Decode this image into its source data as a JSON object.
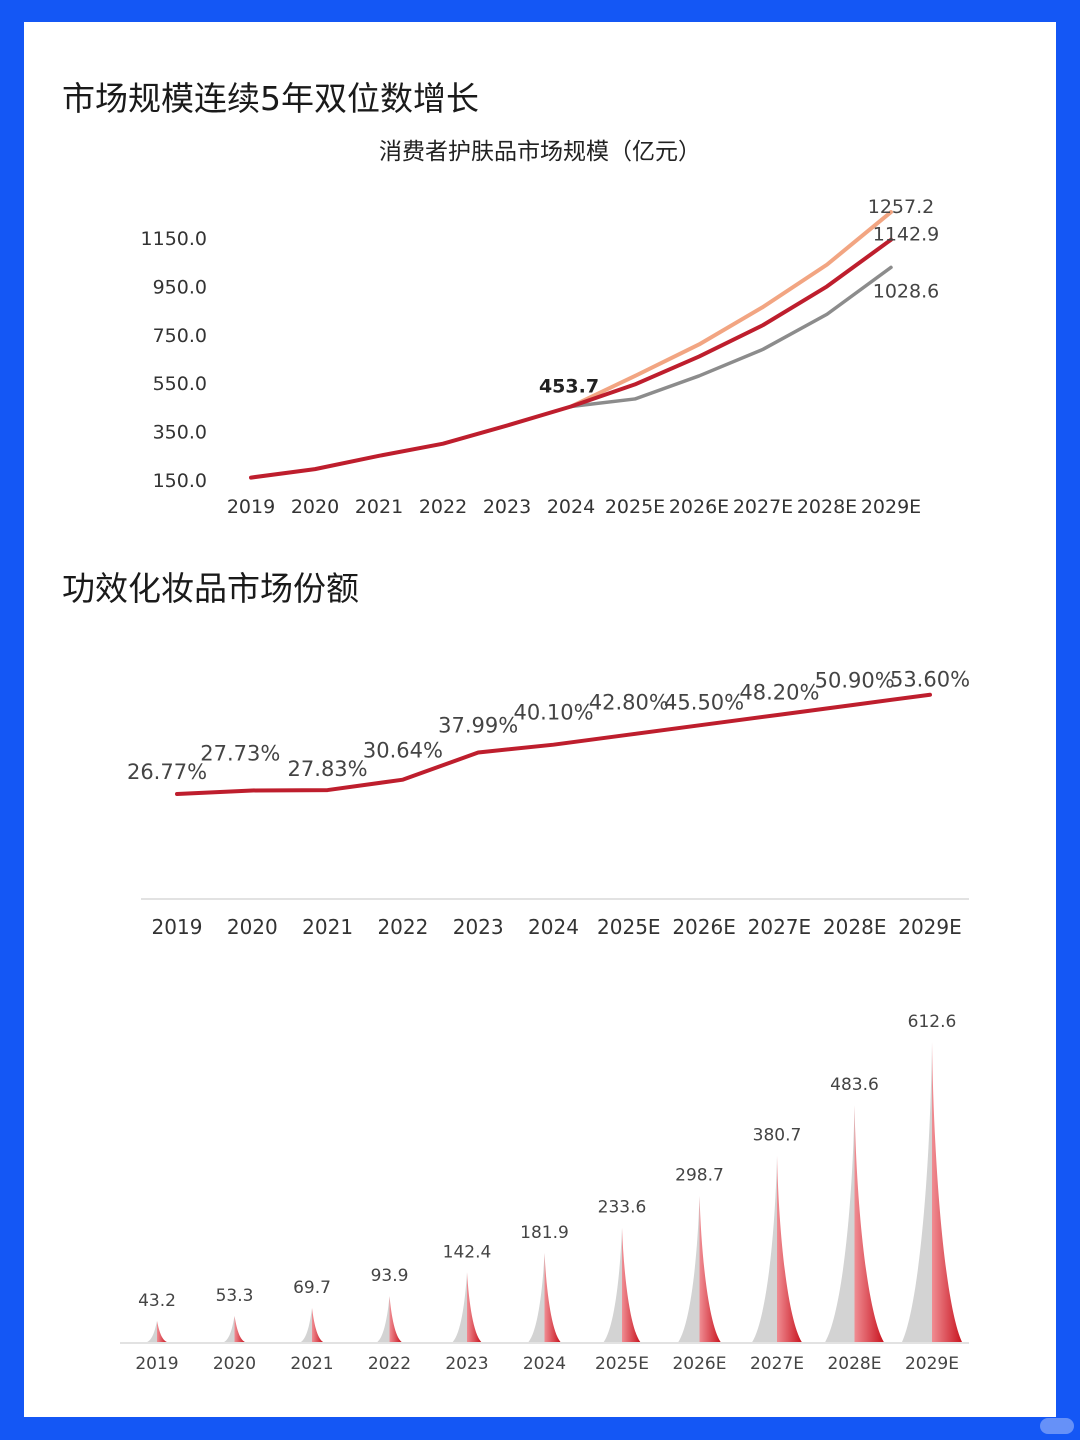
{
  "page": {
    "title1": "市场规模连续5年双位数增长",
    "title2": "功效化妆品市场份额"
  },
  "colors": {
    "background": "#1457f5",
    "base_line": "#be1e2d",
    "high_line": "#f2a582",
    "low_line": "#8c8c8c",
    "bar_red": "#d9202f",
    "bar_grey": "#d3d3d3"
  },
  "chart_data": [
    {
      "type": "line",
      "title": "消费者护肤品市场规模（亿元）",
      "categories": [
        "2019",
        "2020",
        "2021",
        "2022",
        "2023",
        "2024",
        "2025E",
        "2026E",
        "2027E",
        "2028E",
        "2029E"
      ],
      "y_ticks": [
        "1150.0",
        "950.0",
        "750.0",
        "550.0",
        "350.0",
        "150.0"
      ],
      "ylim": [
        150,
        1150
      ],
      "series": [
        {
          "key": "base",
          "values": [
            160,
            195,
            250,
            300,
            375,
            453.7,
            545,
            660,
            790,
            950,
            1142.9
          ]
        },
        {
          "key": "high",
          "values": [
            null,
            null,
            null,
            null,
            null,
            453.7,
            580,
            710,
            865,
            1040,
            1257.2
          ]
        },
        {
          "key": "low",
          "values": [
            null,
            null,
            null,
            null,
            null,
            453.7,
            485,
            580,
            690,
            835,
            1028.6
          ]
        }
      ],
      "labels": {
        "pivot": "453.7",
        "high_end": "1257.2",
        "base_end": "1142.9",
        "low_end": "1028.6"
      }
    },
    {
      "type": "line",
      "categories": [
        "2019",
        "2020",
        "2021",
        "2022",
        "2023",
        "2024",
        "2025E",
        "2026E",
        "2027E",
        "2028E",
        "2029E"
      ],
      "values": [
        26.77,
        27.73,
        27.83,
        30.64,
        37.99,
        40.1,
        42.8,
        45.5,
        48.2,
        50.9,
        53.6
      ],
      "value_labels": [
        "26.77%",
        "27.73%",
        "27.83%",
        "30.64%",
        "37.99%",
        "40.10%",
        "42.80%",
        "45.50%",
        "48.20%",
        "50.90%",
        "53.60%"
      ]
    },
    {
      "type": "bar",
      "categories": [
        "2019",
        "2020",
        "2021",
        "2022",
        "2023",
        "2024",
        "2025E",
        "2026E",
        "2027E",
        "2028E",
        "2029E"
      ],
      "values": [
        43.2,
        53.3,
        69.7,
        93.9,
        142.4,
        181.9,
        233.6,
        298.7,
        380.7,
        483.6,
        612.6
      ],
      "value_labels": [
        "43.2",
        "53.3",
        "69.7",
        "93.9",
        "142.4",
        "181.9",
        "233.6",
        "298.7",
        "380.7",
        "483.6",
        "612.6"
      ]
    }
  ]
}
